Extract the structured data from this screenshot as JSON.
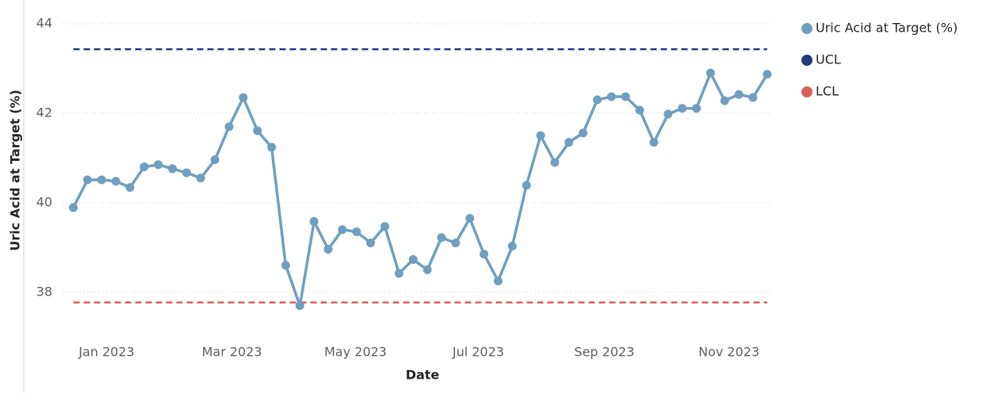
{
  "chart_data": {
    "type": "line",
    "x_label": "Date",
    "y_label": "Uric Acid at Target (%)",
    "categories": [
      null,
      null,
      null,
      null,
      null,
      null,
      null,
      null,
      null,
      null,
      null,
      null,
      null,
      null,
      null,
      null,
      null,
      null,
      null,
      null,
      null,
      null,
      null,
      null,
      null,
      null,
      null,
      null,
      null,
      null,
      null,
      null,
      null,
      null,
      null,
      null,
      null,
      null,
      null,
      null,
      null,
      null,
      null,
      null,
      null,
      null,
      null,
      null,
      null,
      null
    ],
    "series": [
      {
        "name": "Uric Acid at Target (%)",
        "color": "#6f9fc0",
        "values": [
          39.89,
          40.51,
          40.51,
          40.48,
          40.34,
          40.8,
          40.85,
          40.76,
          40.67,
          40.55,
          40.96,
          41.7,
          42.35,
          41.61,
          41.24,
          38.6,
          37.7,
          39.58,
          38.96,
          39.4,
          39.35,
          39.1,
          39.47,
          38.42,
          38.73,
          38.5,
          39.22,
          39.1,
          39.65,
          38.85,
          38.25,
          39.03,
          40.39,
          41.5,
          40.9,
          41.35,
          41.56,
          42.3,
          42.37,
          42.37,
          42.07,
          41.35,
          41.98,
          42.11,
          42.11,
          42.9,
          42.28,
          42.42,
          42.35,
          42.87
        ]
      }
    ],
    "reference_lines": [
      {
        "name": "UCL",
        "color": "#1f3d7a",
        "value": 43.43
      },
      {
        "name": "LCL",
        "color": "#d9605a",
        "value": 37.77
      }
    ],
    "xlim": [
      -0.7,
      49.4
    ],
    "xticks": [
      {
        "value": 2.35,
        "label": "Jan 2023"
      },
      {
        "value": 11.2,
        "label": "Mar 2023"
      },
      {
        "value": 19.93,
        "label": "May 2023"
      },
      {
        "value": 28.6,
        "label": "Jul 2023"
      },
      {
        "value": 37.5,
        "label": "Sep 2023"
      },
      {
        "value": 46.3,
        "label": "Nov 2023"
      }
    ],
    "ylim": [
      37.5,
      44.2
    ],
    "yticks": [
      38,
      40,
      42,
      44
    ],
    "grid": true,
    "legend": "right"
  }
}
